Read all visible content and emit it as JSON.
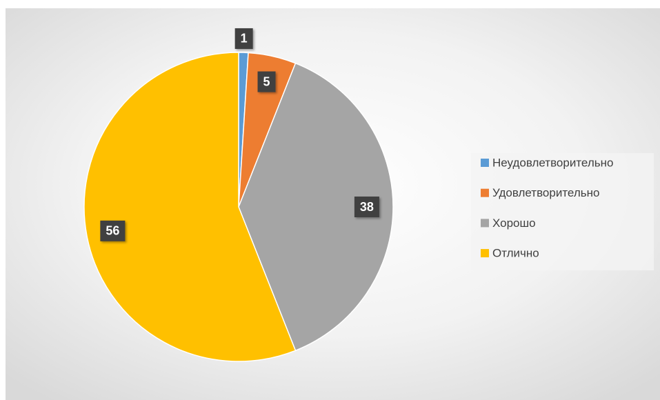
{
  "chart_data": {
    "type": "pie",
    "categories": [
      "Неудовлетворительно",
      "Удовлетворительно",
      "Хорошо",
      "Отлично"
    ],
    "values": [
      1,
      5,
      38,
      56
    ],
    "colors": [
      "#5b9bd5",
      "#ed7d31",
      "#a5a5a5",
      "#ffc000"
    ],
    "legend": "right"
  }
}
